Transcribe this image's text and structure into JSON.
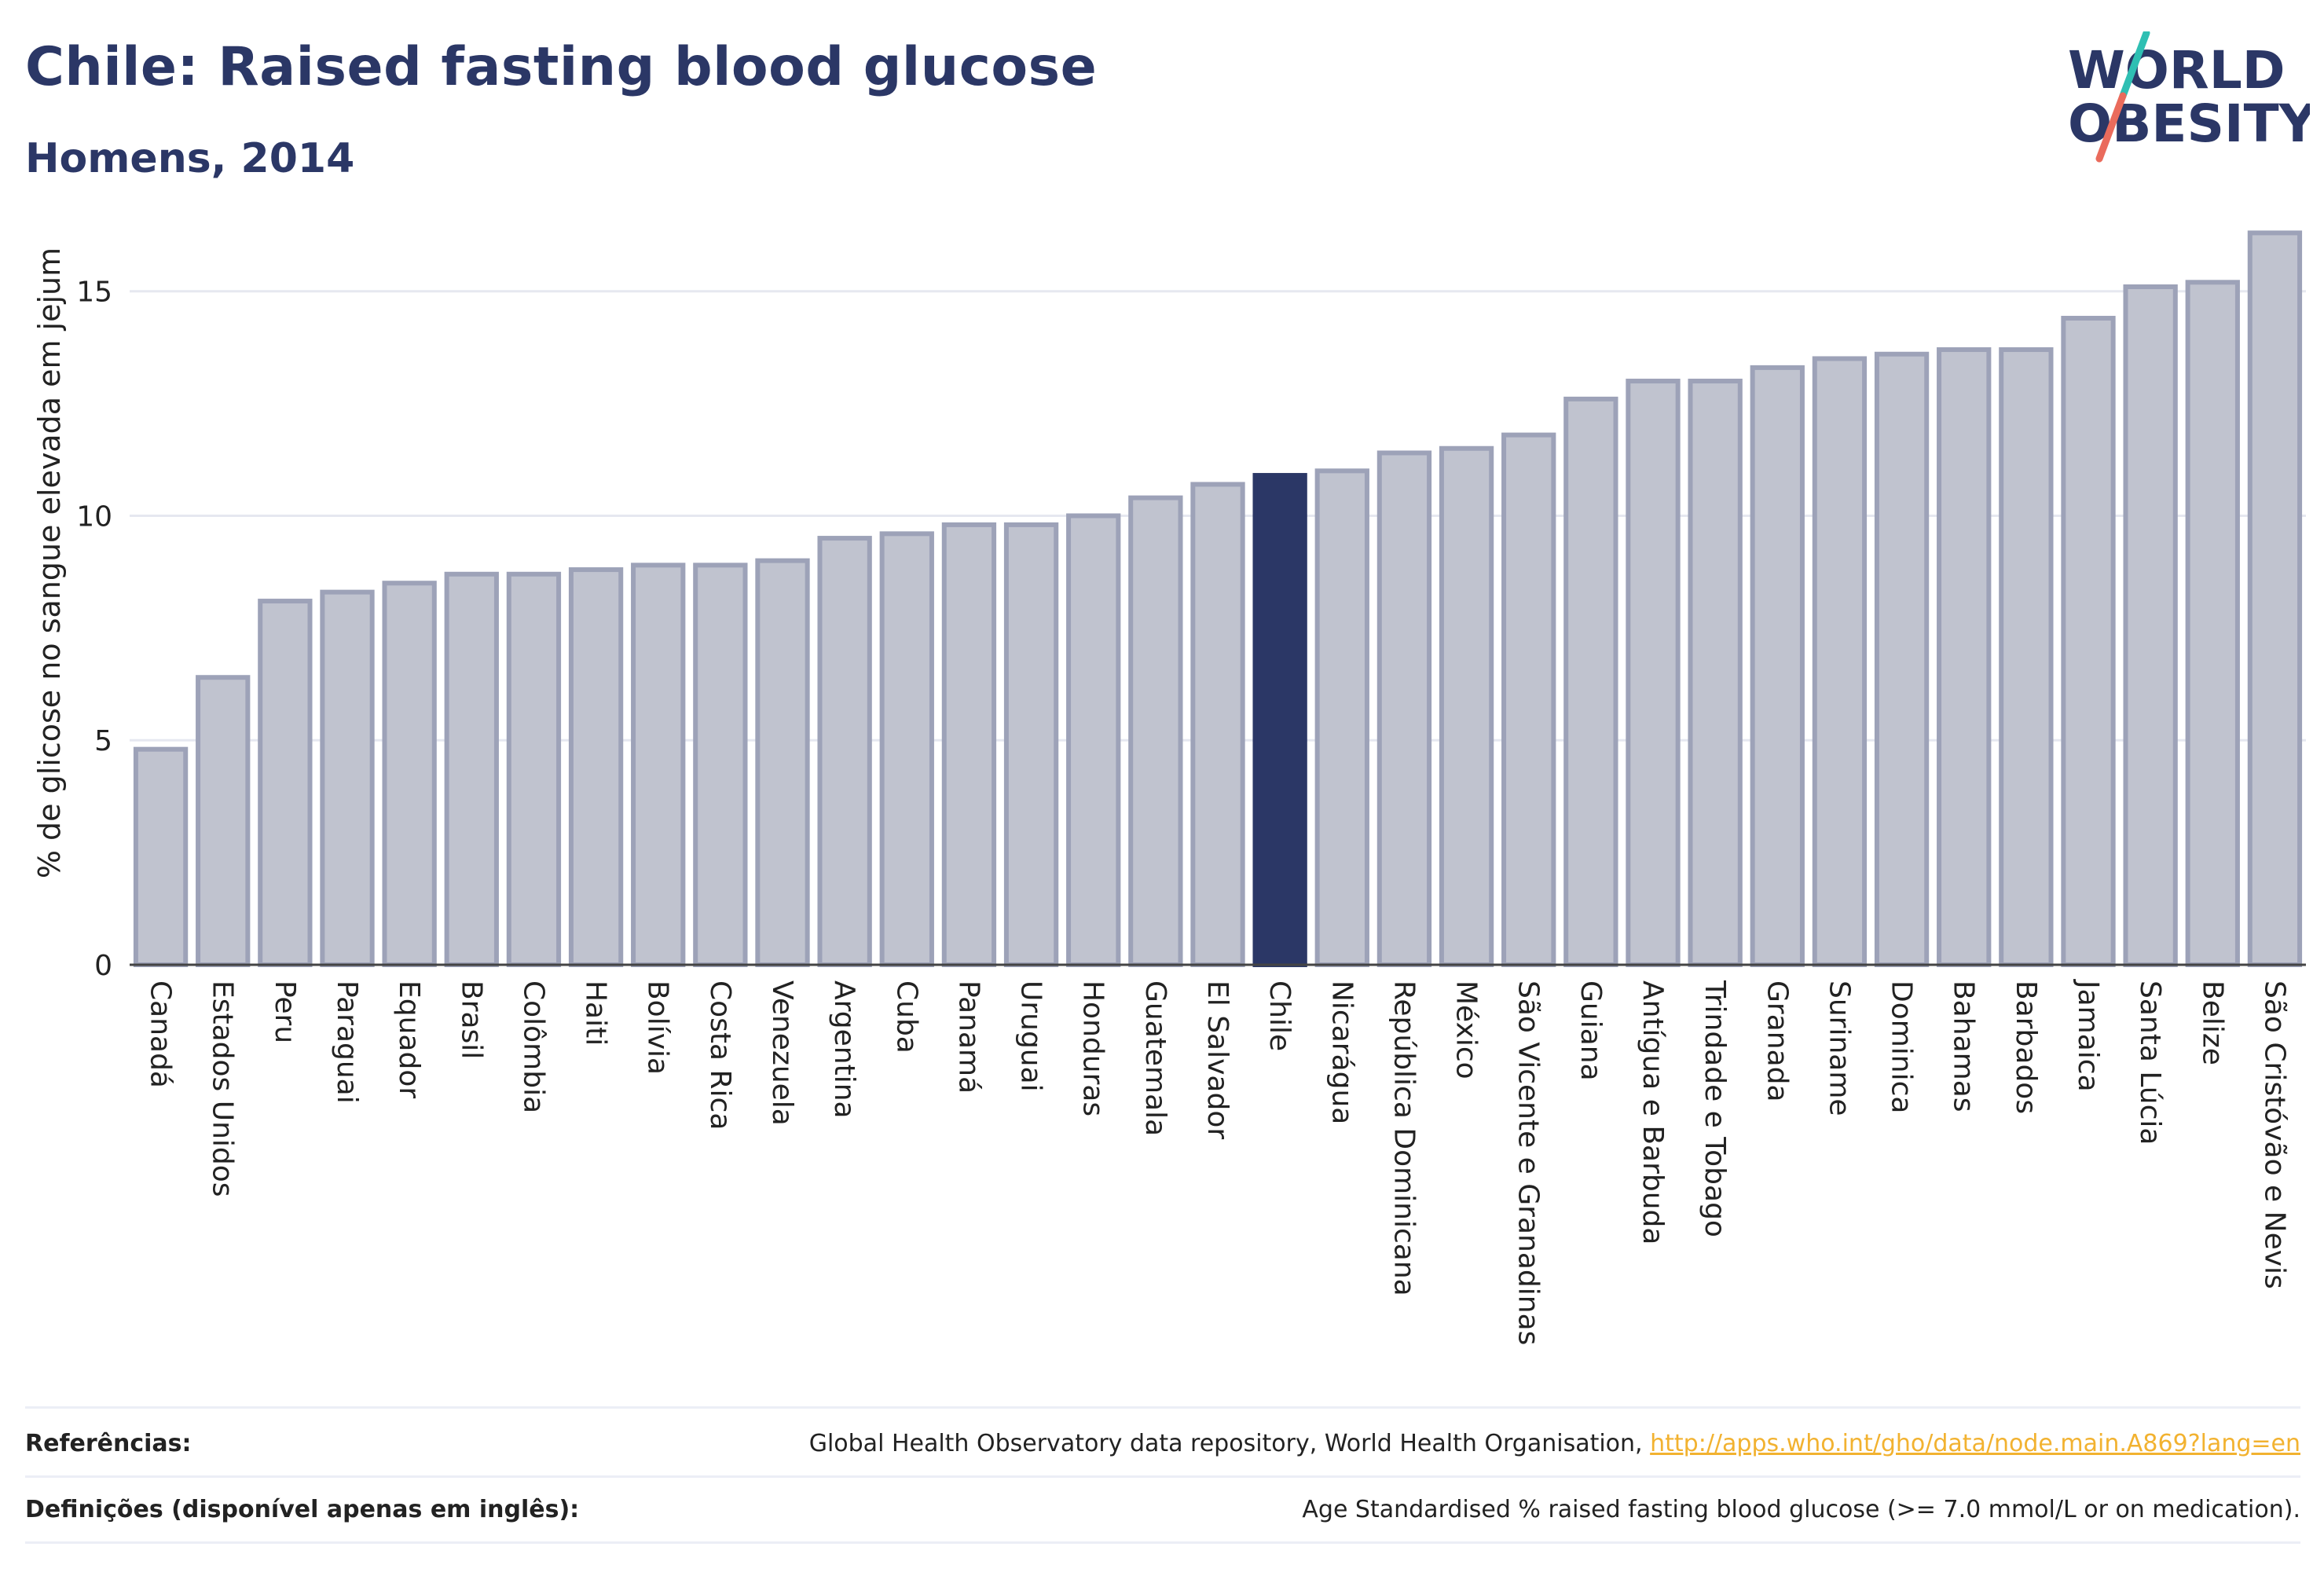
{
  "header": {
    "title": "Chile: Raised fasting blood glucose",
    "subtitle": "Homens, 2014"
  },
  "logo": {
    "line1": "WORLD",
    "line2": "OBESITY",
    "colors": {
      "text": "#2b3766",
      "slash_teal": "#2fbfb3",
      "slash_coral": "#ea6b5c"
    }
  },
  "chart_data": {
    "type": "bar",
    "ylabel": "% de glicose no sangue elevada em jejum",
    "ylim": [
      0,
      16.5
    ],
    "yticks": [
      0,
      5,
      10,
      15
    ],
    "grid": true,
    "highlight": "Chile",
    "colors": {
      "bar": "#c0c3cf",
      "bar_border": "#9da2b8",
      "highlight": "#2b3766",
      "grid": "#e6e8f0"
    },
    "categories": [
      "Canadá",
      "Estados Unidos",
      "Peru",
      "Paraguai",
      "Equador",
      "Brasil",
      "Colômbia",
      "Haiti",
      "Bolívia",
      "Costa Rica",
      "Venezuela",
      "Argentina",
      "Cuba",
      "Panamá",
      "Uruguai",
      "Honduras",
      "Guatemala",
      "El Salvador",
      "Chile",
      "Nicarágua",
      "República Dominicana",
      "México",
      "São Vicente e Granadinas",
      "Guiana",
      "Antígua e Barbuda",
      "Trindade e Tobago",
      "Granada",
      "Suriname",
      "Dominica",
      "Bahamas",
      "Barbados",
      "Jamaica",
      "Santa Lúcia",
      "Belize",
      "São Cristóvão e Nevis"
    ],
    "values": [
      4.8,
      6.4,
      8.1,
      8.3,
      8.5,
      8.7,
      8.7,
      8.8,
      8.9,
      8.9,
      9.0,
      9.5,
      9.6,
      9.8,
      9.8,
      10.0,
      10.4,
      10.7,
      10.9,
      11.0,
      11.4,
      11.5,
      11.8,
      12.6,
      13.0,
      13.0,
      13.3,
      13.5,
      13.6,
      13.7,
      13.7,
      14.4,
      15.1,
      15.2,
      16.3
    ]
  },
  "footer": {
    "references_label": "Referências:",
    "references_text": "Global Health Observatory data repository, World Health Organisation,",
    "references_link": "http://apps.who.int/gho/data/node.main.A869?lang=en",
    "definitions_label": "Definições (disponível apenas em inglês):",
    "definitions_text": "Age Standardised % raised fasting blood glucose (>= 7.0 mmol/L or on medication)."
  }
}
